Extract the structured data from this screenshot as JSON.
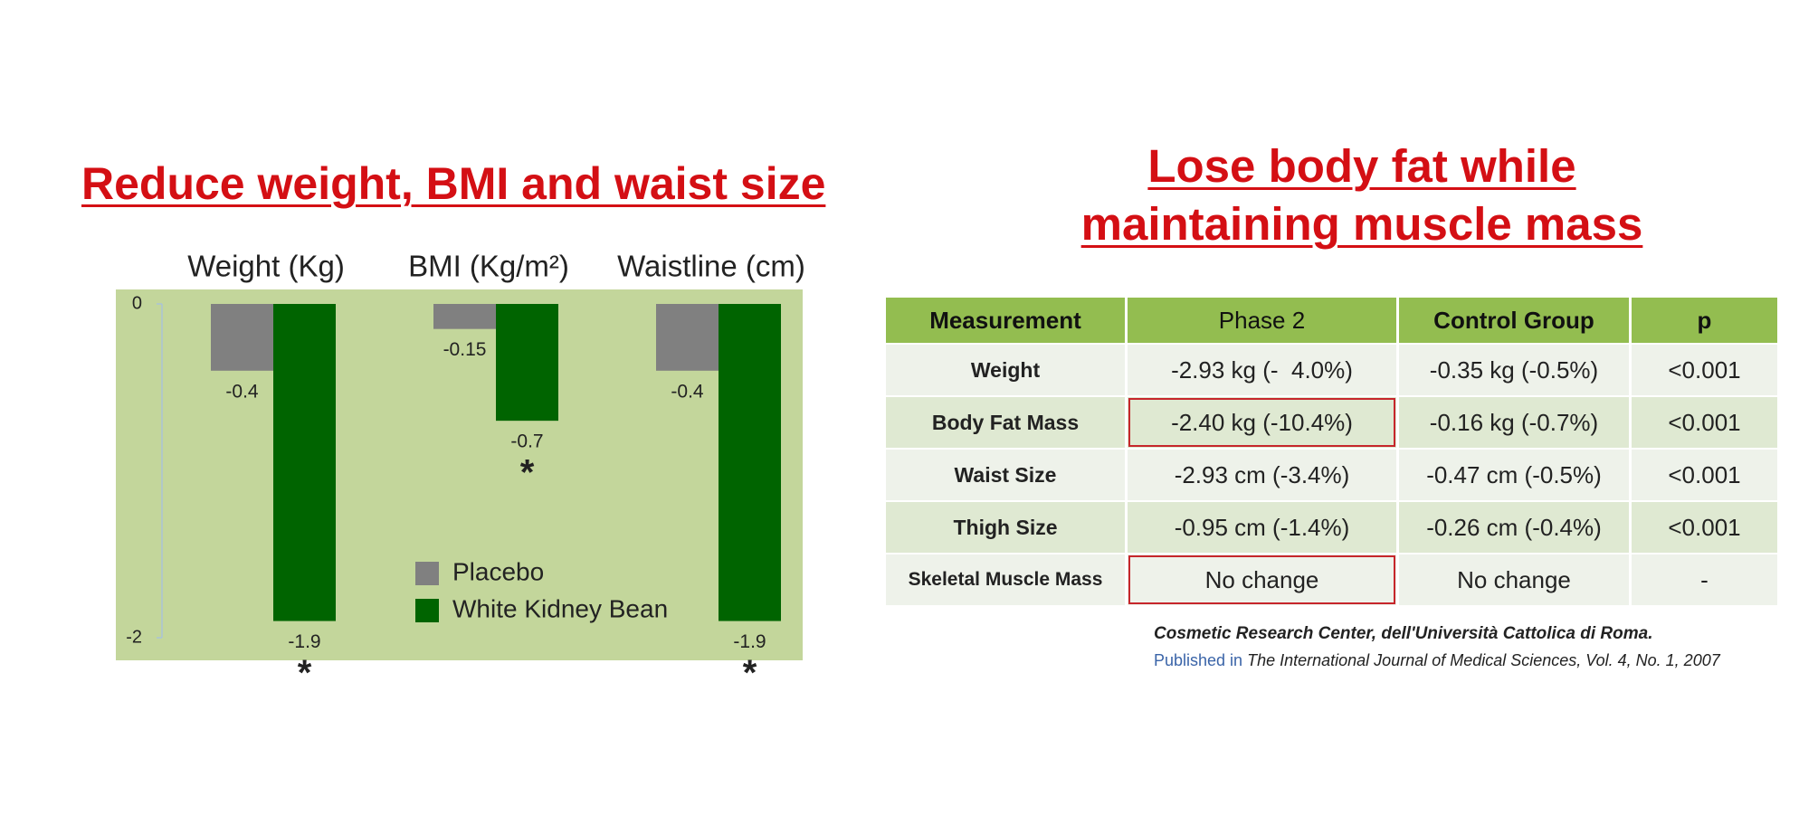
{
  "chart_data": {
    "type": "bar",
    "title": "Reduce weight, BMI and waist size",
    "categories": [
      "Weight (Kg)",
      "BMI (Kg/m²)",
      "Waistline (cm)"
    ],
    "series": [
      {
        "name": "Placebo",
        "color": "#808080",
        "values": [
          -0.4,
          -0.15,
          -0.4
        ]
      },
      {
        "name": "White Kidney Bean",
        "color": "#006400",
        "values": [
          -1.9,
          -0.7,
          -1.9
        ]
      }
    ],
    "significance": [
      "*",
      "*",
      "*"
    ],
    "ylim": [
      -2,
      0
    ],
    "yticks": [
      0,
      -2
    ],
    "grid": false,
    "legend": "lower right",
    "background": "#c3d69b"
  },
  "table_title": [
    "Lose body fat while",
    "maintaining muscle mass"
  ],
  "table": {
    "header": [
      "Measurement",
      "Phase 2",
      "Control Group",
      "p"
    ],
    "rows": [
      [
        "Weight",
        "-2.93 kg (-  4.0%)",
        "-0.35 kg (-0.5%)",
        "<0.001"
      ],
      [
        "Body Fat Mass",
        "-2.40 kg (-10.4%)",
        "-0.16 kg (-0.7%)",
        "<0.001"
      ],
      [
        "Waist Size",
        "-2.93 cm (-3.4%)",
        "-0.47 cm (-0.5%)",
        "<0.001"
      ],
      [
        "Thigh Size",
        "-0.95 cm (-1.4%)",
        "-0.26 cm (-0.4%)",
        "<0.001"
      ],
      [
        "Skeletal Muscle Mass",
        "No change",
        "No change",
        "-"
      ]
    ]
  },
  "citation": {
    "source": "Cosmetic Research Center, dell'Università Cattolica di Roma.",
    "published_prefix": "Published in",
    "journal": "The International Journal of Medical Sciences, Vol. 4, No. 1, 2007"
  }
}
